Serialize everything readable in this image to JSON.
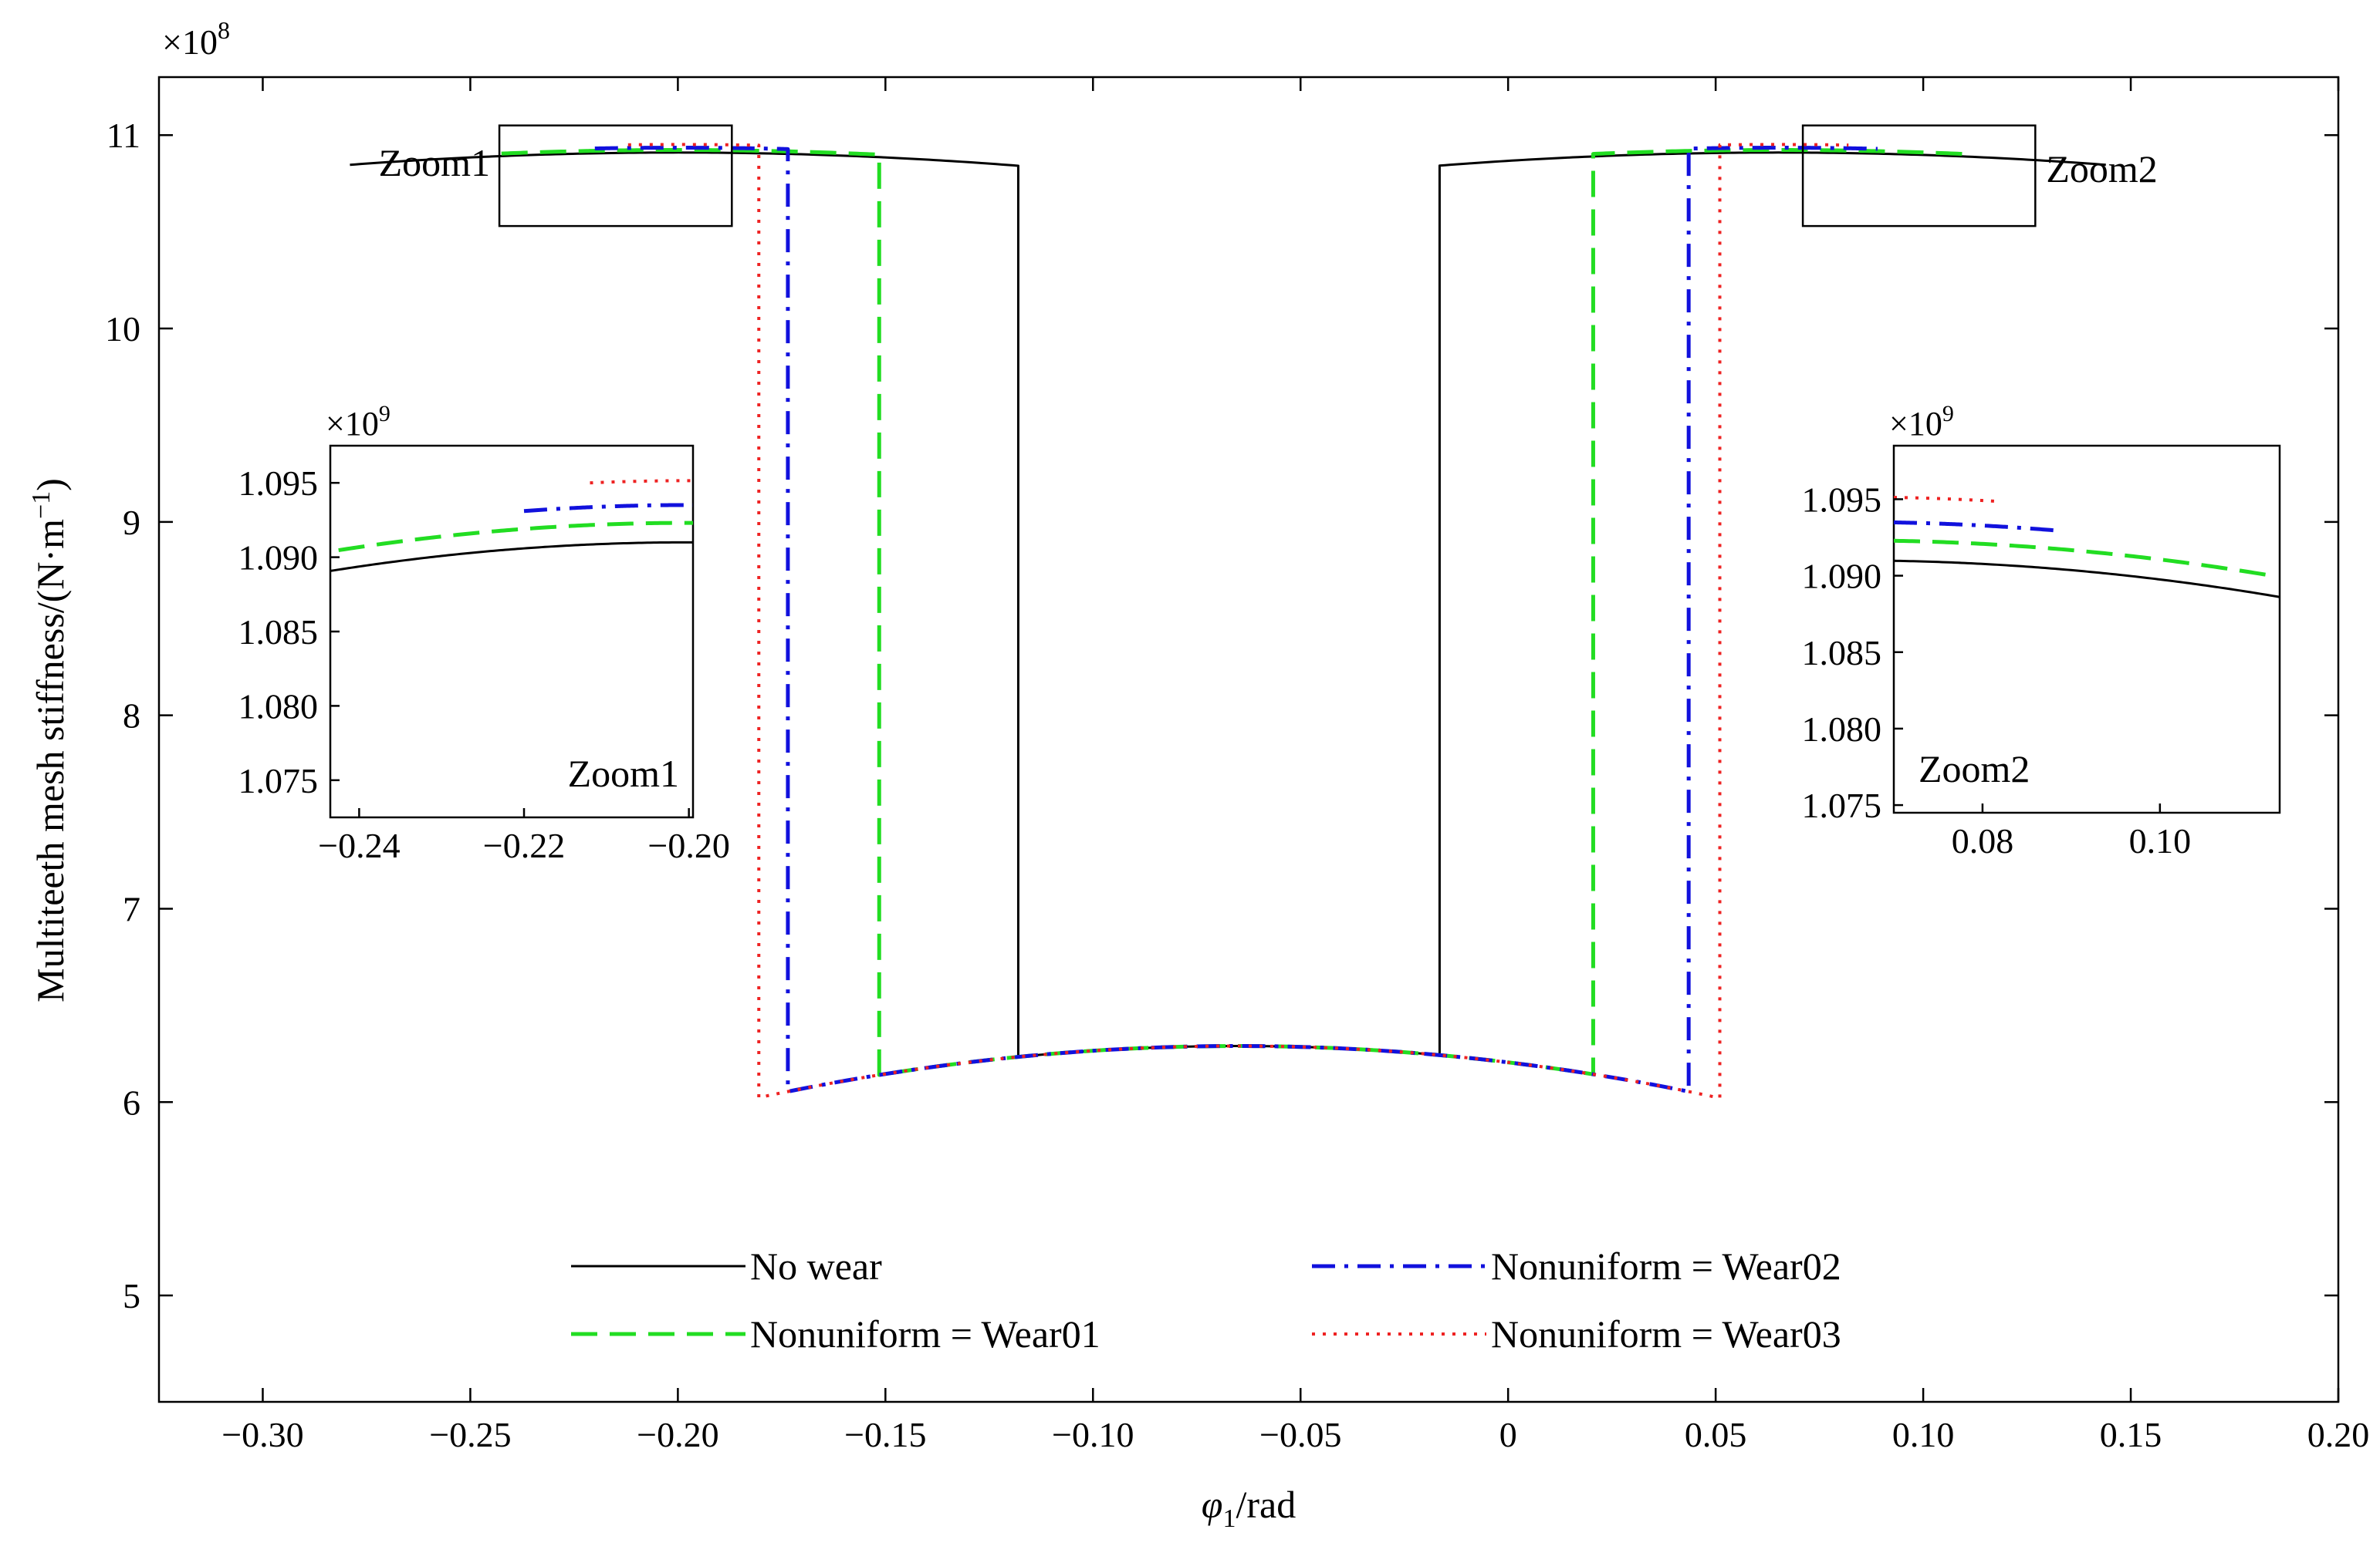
{
  "chart_data": {
    "type": "line",
    "xlabel_var": "φ",
    "xlabel_sub": "1",
    "xlabel_unit": "/rad",
    "ylabel": "Multiteeth mesh stiffness/(N·m",
    "ylabel_sup": "−1",
    "ylabel_close": ")",
    "y_exponent_base": "×10",
    "y_exponent_power": "8",
    "xlim": [
      -0.325,
      0.2
    ],
    "ylim": [
      4.45,
      11.3
    ],
    "x_ticks": [
      -0.3,
      -0.25,
      -0.2,
      -0.15,
      -0.1,
      -0.05,
      0,
      0.05,
      0.1,
      0.15,
      0.2
    ],
    "x_tick_labels": [
      "−0.30",
      "−0.25",
      "−0.20",
      "−0.15",
      "−0.10",
      "−0.05",
      "0",
      "0.05",
      "0.10",
      "0.15",
      "0.20"
    ],
    "y_ticks": [
      5,
      6,
      7,
      8,
      9,
      10,
      11
    ],
    "y_tick_labels": [
      "5",
      "6",
      "7",
      "8",
      "9",
      "10",
      "11"
    ],
    "legend_position": "bottom",
    "series": [
      {
        "name": "No wear",
        "color": "#000000",
        "dash": "solid",
        "t_left": -0.118,
        "t_right": -0.0165,
        "x_start": -0.279,
        "x_end": 0.144,
        "k": 1.0
      },
      {
        "name": "Nonuniform = Wear01",
        "color": "#22dd22",
        "dash": "dashed",
        "t_left": -0.1515,
        "t_right": 0.0205,
        "x_start": -0.2425,
        "x_end": 0.112,
        "k": 1.0012
      },
      {
        "name": "Nonuniform = Wear02",
        "color": "#1111dd",
        "dash": "dashdot",
        "t_left": -0.1735,
        "t_right": 0.0435,
        "x_start": -0.22,
        "x_end": 0.089,
        "k": 1.0023
      },
      {
        "name": "Nonuniform = Wear03",
        "color": "#ee2222",
        "dash": "dotted",
        "t_left": -0.1805,
        "t_right": 0.051,
        "x_start": -0.212,
        "x_end": 0.082,
        "k": 1.0038
      }
    ],
    "curve_model": {
      "upper_peak": [
        -0.2,
        10.91,
        0.0983
      ],
      "upper_peak_right": [
        0.065,
        10.91,
        0.0983
      ],
      "lower_peak": [
        -0.065,
        6.29,
        0.05
      ]
    },
    "zoom_boxes": [
      {
        "label": "Zoom1",
        "x": [
          -0.243,
          -0.187
        ],
        "y": [
          10.53,
          11.05
        ]
      },
      {
        "label": "Zoom2",
        "x": [
          0.071,
          0.127
        ],
        "y": [
          10.53,
          11.05
        ]
      }
    ],
    "insets": [
      {
        "label": "Zoom1",
        "exponent_base": "×10",
        "exponent_power": "9",
        "xlim": [
          -0.2435,
          -0.1995
        ],
        "ylim": [
          1.0725,
          1.0975
        ],
        "x_ticks": [
          -0.24,
          -0.22,
          -0.2
        ],
        "x_tick_labels": [
          "−0.24",
          "−0.22",
          "−0.20"
        ],
        "y_ticks": [
          1.075,
          1.08,
          1.085,
          1.09,
          1.095
        ],
        "y_tick_labels": [
          "1.075",
          "1.080",
          "1.085",
          "1.090",
          "1.095"
        ]
      },
      {
        "label": "Zoom2",
        "exponent_base": "×10",
        "exponent_power": "9",
        "xlim": [
          0.07,
          0.1135
        ],
        "ylim": [
          1.0745,
          1.0985
        ],
        "x_ticks": [
          0.08,
          0.1
        ],
        "x_tick_labels": [
          "0.08",
          "0.10"
        ],
        "y_ticks": [
          1.075,
          1.08,
          1.085,
          1.09,
          1.095
        ],
        "y_tick_labels": [
          "1.075",
          "1.080",
          "1.085",
          "1.090",
          "1.095"
        ]
      }
    ]
  }
}
